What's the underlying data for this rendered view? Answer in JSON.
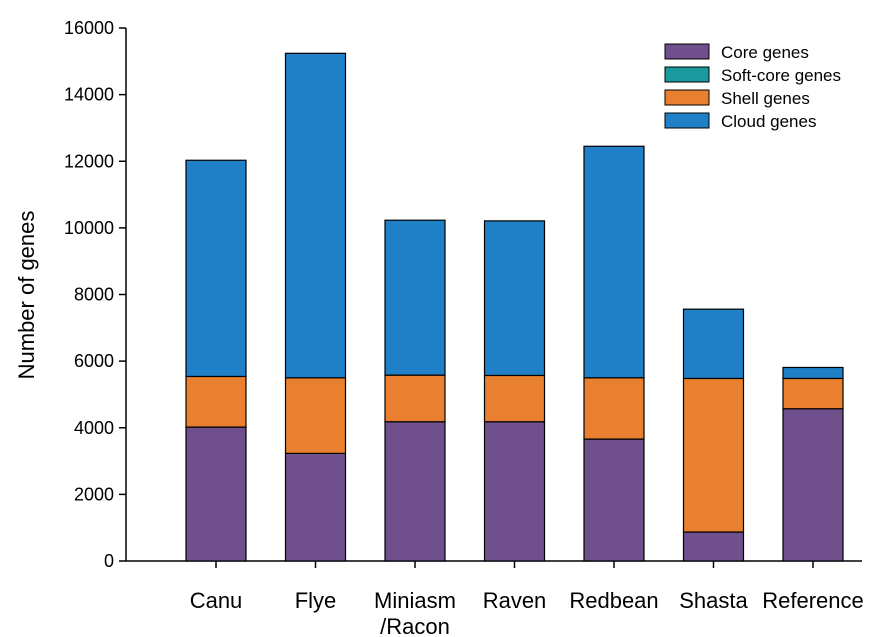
{
  "chart_data": {
    "type": "bar",
    "stacked": true,
    "categories": [
      "Canu",
      "Flye",
      "Miniasm\n/Racon",
      "Raven",
      "Redbean",
      "Shasta",
      "Reference"
    ],
    "series": [
      {
        "name": "Core genes",
        "color": "#6f4f8c",
        "values": [
          4020,
          3230,
          4180,
          4180,
          3660,
          870,
          4570
        ]
      },
      {
        "name": "Soft-core genes",
        "color": "#1a9a9c",
        "values": [
          0,
          0,
          0,
          0,
          0,
          0,
          0
        ]
      },
      {
        "name": "Shell genes",
        "color": "#e88030",
        "values": [
          1520,
          2270,
          1400,
          1390,
          1840,
          4610,
          910
        ]
      },
      {
        "name": "Cloud genes",
        "color": "#1f80c8",
        "values": [
          6490,
          9740,
          4650,
          4640,
          6950,
          2080,
          330
        ]
      }
    ],
    "title": "",
    "xlabel": "",
    "ylabel": "Number of genes",
    "ylim": [
      0,
      16000
    ],
    "yticks": [
      0,
      2000,
      4000,
      6000,
      8000,
      10000,
      12000,
      14000,
      16000
    ],
    "grid": false,
    "legend_position": "top-right"
  }
}
